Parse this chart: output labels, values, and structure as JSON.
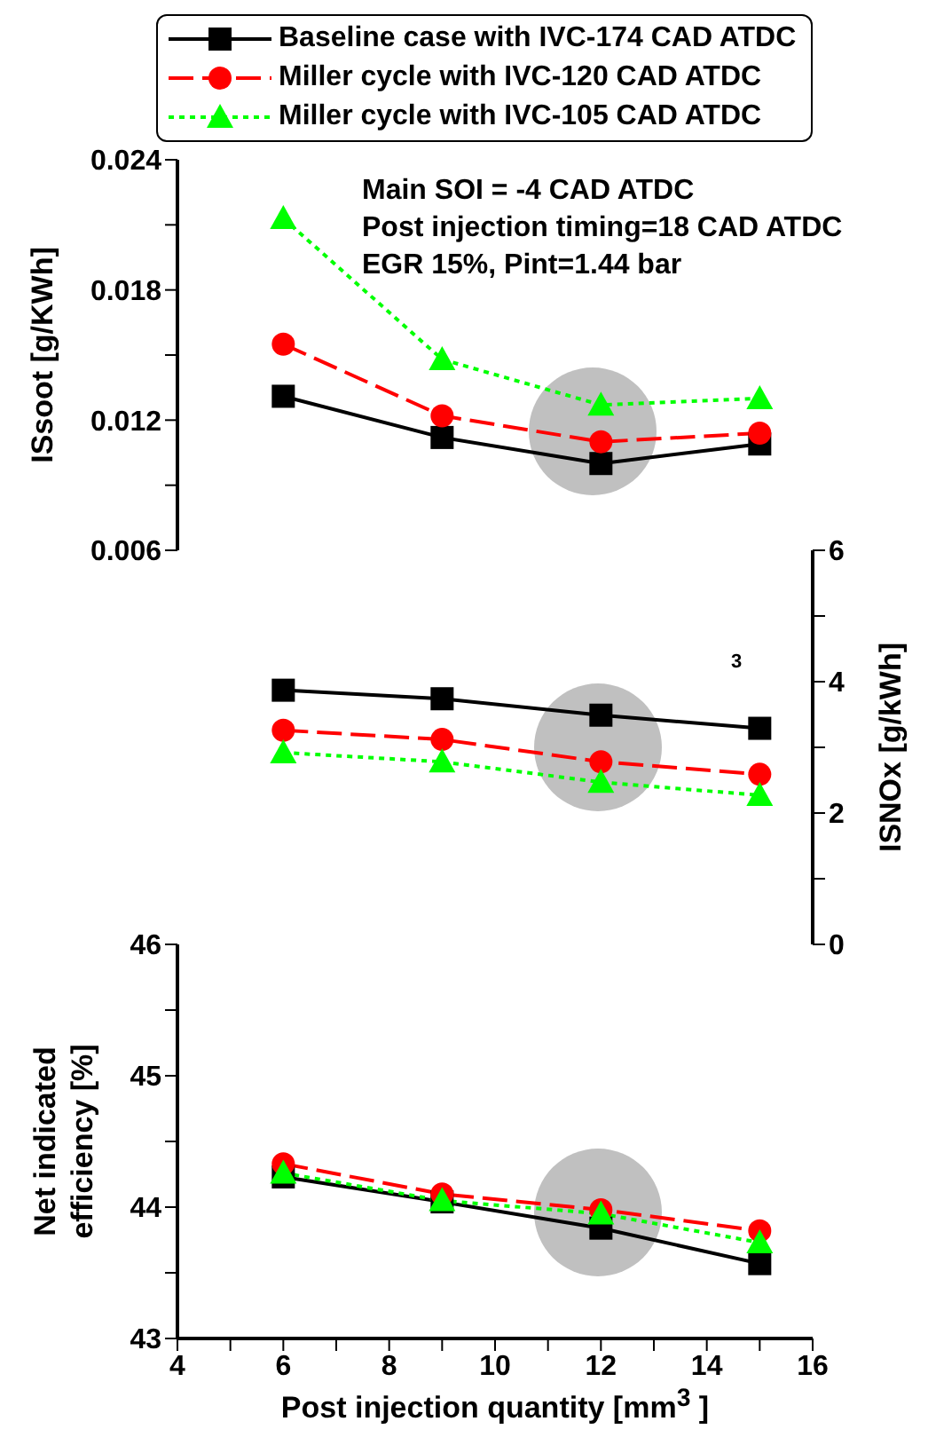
{
  "chart_data": [
    {
      "type": "line",
      "ylabel": "ISsoot [g/KWh]",
      "x": [
        6,
        9,
        12,
        15
      ],
      "xlim": [
        4,
        16
      ],
      "xticks": [
        4,
        6,
        8,
        10,
        12,
        14,
        16
      ],
      "ylim": [
        0.006,
        0.024
      ],
      "yticks": [
        0.006,
        {
          "value": 0.009,
          "label": null
        },
        0.012,
        {
          "value": 0.015,
          "label": null
        },
        0.018,
        {
          "value": 0.021,
          "label": null
        },
        0.024
      ],
      "tick_labels": "y",
      "legend": "top",
      "grid": false,
      "annotations": [
        "Main SOI = -4 CAD ATDC",
        "Post injection timing=18 CAD ATDC",
        "EGR 15%, Pint=1.44 bar"
      ],
      "series": [
        {
          "name": "Baseline case with IVC-174 CAD ATDC",
          "color": "#000000",
          "marker": "square",
          "line_style": "solid",
          "values": [
            0.0131,
            0.0112,
            0.01,
            0.0109
          ]
        },
        {
          "name": "Miller cycle with IVC-120 CAD ATDC",
          "color": "#ff0000",
          "marker": "circle",
          "line_style": "dashed",
          "values": [
            0.0155,
            0.0122,
            0.011,
            0.0114
          ]
        },
        {
          "name": "Miller cycle with IVC-105 CAD ATDC",
          "color": "#00ff00",
          "marker": "triangle",
          "line_style": "dotted",
          "values": [
            0.0213,
            0.0148,
            0.0127,
            0.013
          ]
        }
      ]
    },
    {
      "type": "line",
      "y2label": "ISNOx [g/kWh]",
      "x": [
        6,
        9,
        12,
        15
      ],
      "xlim": [
        4,
        16
      ],
      "xticks": [
        4,
        6,
        8,
        10,
        12,
        14,
        16
      ],
      "y2lim": [
        0,
        6
      ],
      "y2ticks": [
        0,
        {
          "value": 1,
          "label": null
        },
        2,
        {
          "value": 3,
          "label": null
        },
        4,
        {
          "value": 5,
          "label": null
        },
        6
      ],
      "tick_labels": "y",
      "grid": false,
      "annotations": [
        "3"
      ],
      "series": [
        {
          "color": "#000000",
          "marker": "square",
          "line_style": "solid",
          "axis": "y2",
          "values": [
            3.87,
            3.74,
            3.49,
            3.29
          ]
        },
        {
          "color": "#ff0000",
          "marker": "circle",
          "line_style": "dashed",
          "axis": "y2",
          "values": [
            3.26,
            3.12,
            2.78,
            2.59
          ]
        },
        {
          "color": "#00ff00",
          "marker": "triangle",
          "line_style": "dotted",
          "axis": "y2",
          "values": [
            2.92,
            2.78,
            2.47,
            2.27
          ]
        }
      ]
    },
    {
      "type": "line",
      "ylabel": "Net indicated efficiency [%]",
      "xlabel": "Post injection quantity [mm$^{3}$ ]",
      "x": [
        6,
        9,
        12,
        15
      ],
      "xlim": [
        4,
        16
      ],
      "xticks": [
        4,
        {
          "value": 5,
          "label": null
        },
        6,
        {
          "value": 7,
          "label": null
        },
        8,
        {
          "value": 9,
          "label": null
        },
        10,
        {
          "value": 11,
          "label": null
        },
        12,
        {
          "value": 13,
          "label": null
        },
        14,
        {
          "value": 15,
          "label": null
        },
        16
      ],
      "ylim": [
        43,
        46
      ],
      "yticks": [
        43,
        {
          "value": 43.5,
          "label": null
        },
        44,
        {
          "value": 44.5,
          "label": null
        },
        45,
        {
          "value": 45.5,
          "label": null
        },
        46
      ],
      "grid": false,
      "series": [
        {
          "color": "#000000",
          "marker": "square",
          "line_style": "solid",
          "values": [
            44.23,
            44.04,
            43.84,
            43.57
          ]
        },
        {
          "color": "#ff0000",
          "marker": "circle",
          "line_style": "dashed",
          "values": [
            44.33,
            44.1,
            43.98,
            43.82
          ]
        },
        {
          "color": "#00ff00",
          "marker": "triangle",
          "line_style": "dotted",
          "values": [
            44.26,
            44.05,
            43.95,
            43.73
          ]
        }
      ]
    }
  ]
}
